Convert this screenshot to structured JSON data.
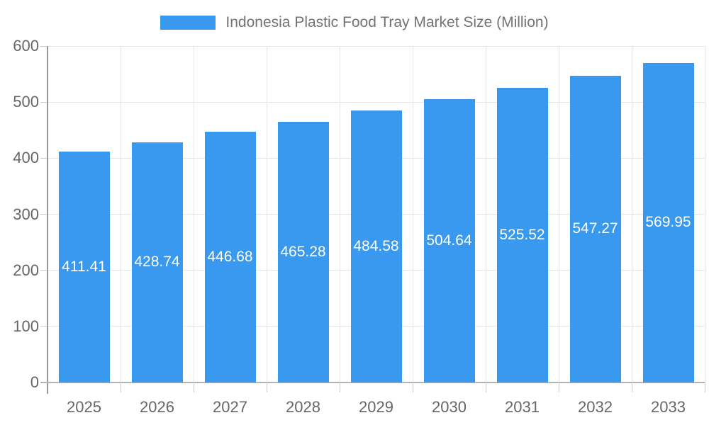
{
  "chart_data": {
    "type": "bar",
    "title": "",
    "legend": "Indonesia Plastic Food Tray Market Size (Million)",
    "legend_position": "top",
    "categories": [
      "2025",
      "2026",
      "2027",
      "2028",
      "2029",
      "2030",
      "2031",
      "2032",
      "2033"
    ],
    "values": [
      411.41,
      428.74,
      446.68,
      465.28,
      484.58,
      504.64,
      525.52,
      547.27,
      569.95
    ],
    "value_labels": [
      "411.41",
      "428.74",
      "446.68",
      "465.28",
      "484.58",
      "504.64",
      "525.52",
      "547.27",
      "569.95"
    ],
    "xlabel": "",
    "ylabel": "",
    "ylim": [
      0,
      600
    ],
    "ytick_step": 100,
    "yticks": [
      0,
      100,
      200,
      300,
      400,
      500,
      600
    ],
    "grid": true,
    "bar_value_labels_visible": true,
    "colors": {
      "bar": "#3999ee",
      "bar_value_label": "#ffffff",
      "y_axis_line": "#999999",
      "x_axis_line": "#b3b3b3",
      "gridline": "#e6e6e6",
      "tick_mark": "#cccccc",
      "tick_label": "#666666",
      "legend_text": "#737373"
    }
  }
}
